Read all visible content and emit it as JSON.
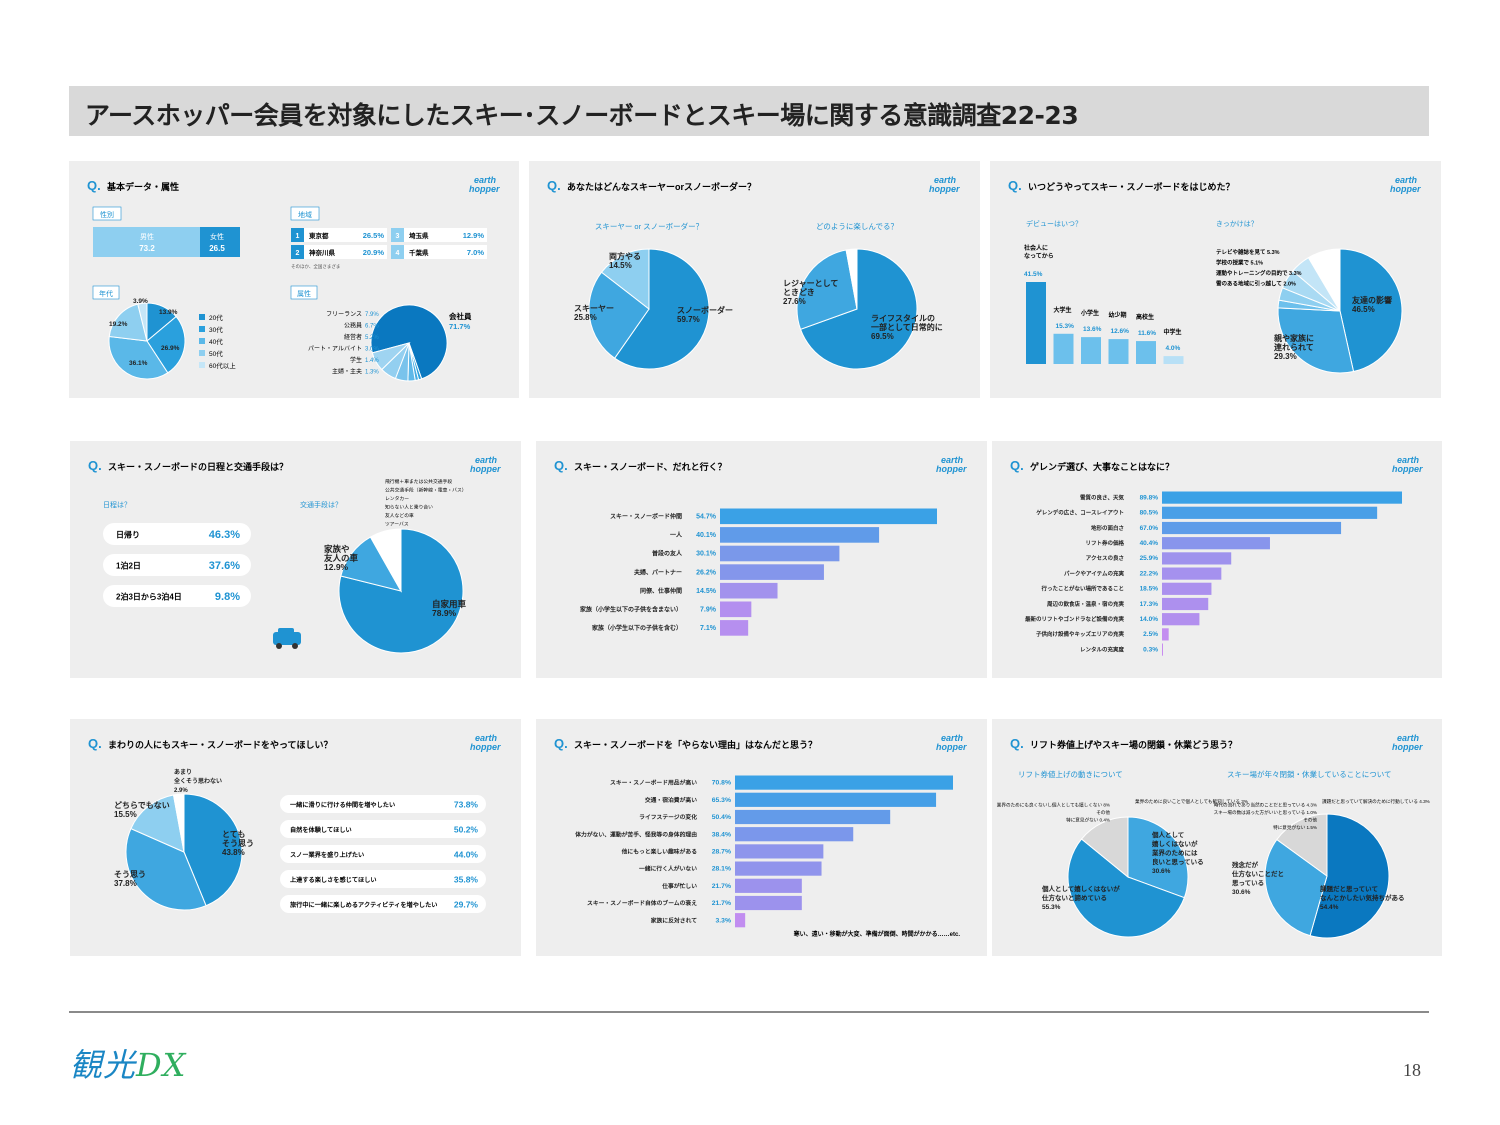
{
  "header": {
    "title": "アースホッパー会員を対象にしたスキー･スノーボードとスキー場に関する意識調査22-23"
  },
  "footer": {
    "logo": "観光",
    "logo_accent": "DX",
    "page": "18"
  },
  "brand": {
    "name": "earth hopper",
    "main": "#1f93d2",
    "light": "#8ecff0",
    "mid": "#3fa7e0",
    "dark": "#0a78c0",
    "gradient_from": "#3aa1e6",
    "gradient_to": "#c88cf0"
  },
  "panels": [
    {
      "question": "基本データ・属性",
      "gender": {
        "label": "性別",
        "male": "男性",
        "male_value": "73.2",
        "female": "女性",
        "female_value": "26.5"
      },
      "region": {
        "label": "地域",
        "rows": [
          {
            "rank": "1",
            "name": "東京都",
            "value": "26.5"
          },
          {
            "rank": "2",
            "name": "神奈川県",
            "value": "20.9"
          },
          {
            "rank": "3",
            "name": "埼玉県",
            "value": "12.9"
          },
          {
            "rank": "4",
            "name": "千葉県",
            "value": "7.0"
          }
        ],
        "note": "そのほか、全国さまざま"
      },
      "age_label": "年代",
      "occupation_label": "属性"
    },
    {
      "question": "あなたはどんなスキーヤーorスノーボーダー？"
    },
    {
      "question": "いつどうやってスキー・スノーボードをはじめた？",
      "debut_label": "デビューはいつ？",
      "trigger_label": "きっかけは？"
    },
    {
      "question": "スキー・スノーボードの日程と交通手段は？",
      "schedule_label": "日程は？",
      "transport_label": "交通手段は？",
      "schedule": [
        {
          "label": "日帰り",
          "value": "46.3"
        },
        {
          "label": "1泊2日",
          "value": "37.6"
        },
        {
          "label": "2泊3日から3泊4日",
          "value": "9.8"
        }
      ],
      "transport_others": [
        "飛行機＋車または公共交通手段",
        "公共交通手段（新幹線・電車・バス）",
        "レンタカー",
        "知らない人と乗り合い",
        "友人などの車",
        "ツアーバス"
      ]
    },
    {
      "question": "スキー・スノーボード、だれと行く？"
    },
    {
      "question": "ゲレンデ選び、大事なことはなに？"
    },
    {
      "question": "まわりの人にもスキー・スノーボードをやってほしい？",
      "wishes": [
        {
          "label": "一緒に滑りに行ける仲間を増やしたい",
          "value": "73.8"
        },
        {
          "label": "自然を体験してほしい",
          "value": "50.2"
        },
        {
          "label": "スノー業界を盛り上げたい",
          "value": "44.0"
        },
        {
          "label": "上達する楽しさを感じてほしい",
          "value": "35.8"
        },
        {
          "label": "旅行中に一緒に楽しめるアクティビティを増やしたい",
          "value": "29.7"
        }
      ]
    },
    {
      "question": "スキー・スノーボードを「やらない理由」はなんだと思う？",
      "note": "寒い、遠い・移動が大変、準備が面倒、時間がかかる……etc."
    },
    {
      "question": "リフト券値上げやスキー場の閉鎖・休業どう思う？",
      "left_label": "リフト券値上げの動きについて",
      "right_label": "スキー場が年々閉鎖・休業していることについて"
    }
  ],
  "chart_data": [
    {
      "type": "pie",
      "title": "年代",
      "series": [
        {
          "name": "20代",
          "value": 13.9
        },
        {
          "name": "30代",
          "value": 26.9
        },
        {
          "name": "40代",
          "value": 36.1
        },
        {
          "name": "50代",
          "value": 19.2
        },
        {
          "name": "60代以上",
          "value": 3.9
        }
      ]
    },
    {
      "type": "pie",
      "title": "属性",
      "series": [
        {
          "name": "会社員",
          "value": 71.7
        },
        {
          "name": "主婦・主夫",
          "value": 1.3
        },
        {
          "name": "学生",
          "value": 1.4
        },
        {
          "name": "パート・アルバイト",
          "value": 3.0
        },
        {
          "name": "経営者",
          "value": 5.2
        },
        {
          "name": "公務員",
          "value": 6.7
        },
        {
          "name": "フリーランス",
          "value": 7.9
        }
      ]
    },
    {
      "type": "pie",
      "title": "スキーヤー or スノーボーダー？",
      "series": [
        {
          "name": "スノーボーダー",
          "value": 59.7
        },
        {
          "name": "スキーヤー",
          "value": 25.8
        },
        {
          "name": "両方やる",
          "value": 14.5
        }
      ]
    },
    {
      "type": "pie",
      "title": "どのように楽しんでる？",
      "series": [
        {
          "name": "ライフスタイルの一部として日常的に",
          "value": 69.5
        },
        {
          "name": "レジャーとしてときどき",
          "value": 27.6
        },
        {
          "name": "その他",
          "value": 2.9
        }
      ]
    },
    {
      "type": "bar",
      "title": "デビューはいつ？",
      "categories": [
        "社会人になってから",
        "大学生",
        "小学生",
        "幼少期",
        "高校生",
        "中学生"
      ],
      "values": [
        41.5,
        15.3,
        13.6,
        12.6,
        11.6,
        4.0
      ]
    },
    {
      "type": "pie",
      "title": "きっかけは？",
      "series": [
        {
          "name": "友達の影響",
          "value": 46.5
        },
        {
          "name": "親や家族に連れられて",
          "value": 29.3
        },
        {
          "name": "雪のある地域に引っ越して",
          "value": 2.0
        },
        {
          "name": "運動やトレーニングの目的で",
          "value": 3.3
        },
        {
          "name": "学校の授業で",
          "value": 5.1
        },
        {
          "name": "テレビや雑誌を見て",
          "value": 5.3
        },
        {
          "name": "その他",
          "value": 8.5
        }
      ]
    },
    {
      "type": "pie",
      "title": "交通手段は？",
      "series": [
        {
          "name": "自家用車",
          "value": 78.9
        },
        {
          "name": "家族や友人の車",
          "value": 12.9
        },
        {
          "name": "その他",
          "value": 8.2
        }
      ]
    },
    {
      "type": "bar",
      "title": "だれと行く？",
      "categories": [
        "スキー・スノーボード仲間",
        "一人",
        "普段の友人",
        "夫婦、パートナー",
        "同僚、仕事仲間",
        "家族（小学生以下の子供を含まない）",
        "家族（小学生以下の子供を含む）"
      ],
      "values": [
        54.7,
        40.1,
        30.1,
        26.2,
        14.5,
        7.9,
        7.1
      ]
    },
    {
      "type": "bar",
      "title": "ゲレンデ選び",
      "categories": [
        "雪質の良さ、天気",
        "ゲレンデの広さ、コースレイアウト",
        "地形の面白さ",
        "リフト券の価格",
        "アクセスの良さ",
        "パークやアイテムの充実",
        "行ったことがない場所であること",
        "周辺の飲食店・温泉・宿の充実",
        "最新のリフトやゴンドラなど設備の充実",
        "子供向け設備やキッズエリアの充実",
        "レンタルの充実度"
      ],
      "values": [
        89.8,
        80.5,
        67.0,
        40.4,
        25.9,
        22.2,
        18.5,
        17.3,
        14.0,
        2.5,
        0.3
      ]
    },
    {
      "type": "pie",
      "title": "やってほしい？",
      "series": [
        {
          "name": "とてもそう思う",
          "value": 43.8
        },
        {
          "name": "そう思う",
          "value": 37.8
        },
        {
          "name": "どちらでもない",
          "value": 15.5
        },
        {
          "name": "あまり全くそう思わない",
          "value": 2.9
        }
      ]
    },
    {
      "type": "bar",
      "title": "やらない理由",
      "categories": [
        "スキー・スノーボード用品が高い",
        "交通・宿泊費が高い",
        "ライフステージの変化",
        "体力がない、運動が苦手、怪我等の身体的理由",
        "他にもっと楽しい趣味がある",
        "一緒に行く人がいない",
        "仕事が忙しい",
        "スキー・スノーボード自体のブームの衰え",
        "家族に反対されて"
      ],
      "values": [
        70.8,
        65.3,
        50.4,
        38.4,
        28.7,
        28.1,
        21.7,
        21.7,
        3.3
      ]
    },
    {
      "type": "pie",
      "title": "リフト券値上げの動きについて",
      "series": [
        {
          "name": "個人として嬉しくはないが業界のためには良いと思っている",
          "value": 30.6
        },
        {
          "name": "個人として嬉しくはないが仕方ないと諦めている",
          "value": 55.3
        },
        {
          "name": "その他",
          "value": 14.1
        }
      ],
      "extra_labels": [
        "業界のために良いことで個人としても歓迎している 3%",
        "業界のためにも良くないし個人としても嬉しくない 8%",
        "その他",
        "特に意見がない 0.4%"
      ]
    },
    {
      "type": "pie",
      "title": "スキー場が年々閉鎖・休業していることについて",
      "series": [
        {
          "name": "課題だと思っていてなんとかしたい気持ちがある",
          "value": 54.4
        },
        {
          "name": "残念だが仕方ないことだと思っている",
          "value": 30.6
        },
        {
          "name": "その他",
          "value": 15.0
        }
      ],
      "extra_labels": [
        "課題だと思っていて解決のために行動している 4.3%",
        "時代の流れであり当然のことだと思っている 4.3%",
        "スキー場の数は減った方がいいと思っている 1.0%",
        "その他",
        "特に意見がない 1.5%"
      ]
    }
  ]
}
